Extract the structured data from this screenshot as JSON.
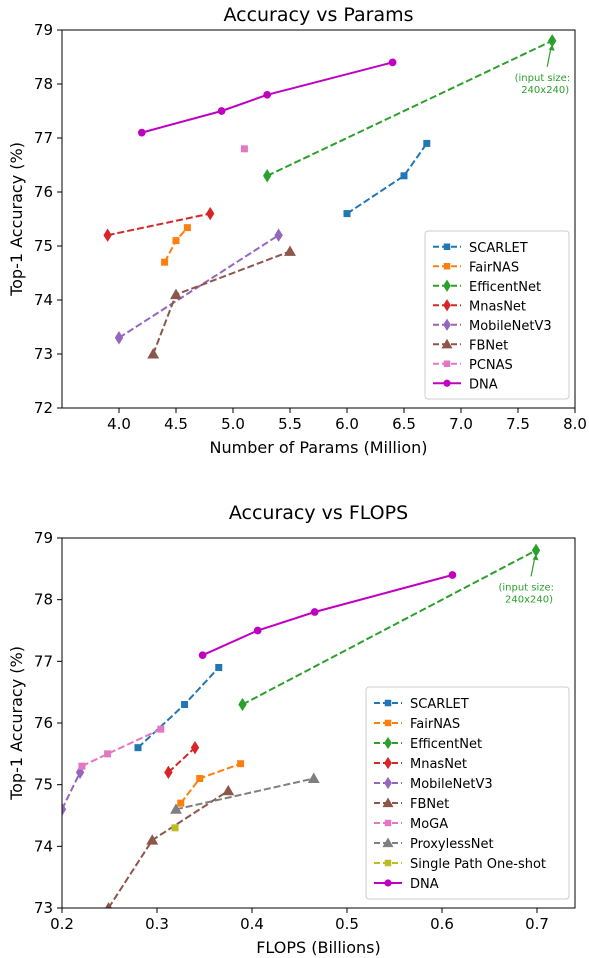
{
  "chart_data": [
    {
      "type": "line",
      "title": "Accuracy vs Params",
      "xlabel": "Number of Params (Million)",
      "ylabel": "Top-1 Accuracy (%)",
      "xlim": [
        3.5,
        8.0
      ],
      "ylim": [
        72,
        79
      ],
      "xticks": [
        "4.0",
        "4.5",
        "5.0",
        "5.5",
        "6.0",
        "6.5",
        "7.0",
        "7.5",
        "8.0"
      ],
      "yticks": [
        "72",
        "73",
        "74",
        "75",
        "76",
        "77",
        "78",
        "79"
      ],
      "legend_position": "lower-right",
      "annotation": {
        "text_line1": "(input size:",
        "text_line2": "240x240)",
        "x": 7.8,
        "y": 78.8,
        "color": "#2ca02c"
      },
      "series": [
        {
          "name": "SCARLET",
          "color": "#1f77b4",
          "marker": "square",
          "dash": true,
          "x": [
            6.0,
            6.5,
            6.7
          ],
          "y": [
            75.6,
            76.3,
            76.9
          ]
        },
        {
          "name": "FairNAS",
          "color": "#ff7f0e",
          "marker": "square",
          "dash": true,
          "x": [
            4.4,
            4.5,
            4.6
          ],
          "y": [
            74.7,
            75.1,
            75.34
          ]
        },
        {
          "name": "EfficentNet",
          "color": "#2ca02c",
          "marker": "diamond",
          "dash": true,
          "x": [
            5.3,
            7.8
          ],
          "y": [
            76.3,
            78.8
          ]
        },
        {
          "name": "MnasNet",
          "color": "#d62728",
          "marker": "diamond",
          "dash": true,
          "x": [
            3.9,
            4.8
          ],
          "y": [
            75.2,
            75.6
          ]
        },
        {
          "name": "MobileNetV3",
          "color": "#9467bd",
          "marker": "diamond",
          "dash": true,
          "x": [
            4.0,
            5.4
          ],
          "y": [
            73.3,
            75.2
          ]
        },
        {
          "name": "FBNet",
          "color": "#8c564b",
          "marker": "triangle",
          "dash": true,
          "x": [
            4.3,
            4.5,
            5.5
          ],
          "y": [
            73.0,
            74.1,
            74.9
          ]
        },
        {
          "name": "PCNAS",
          "color": "#e377c2",
          "marker": "square",
          "dash": true,
          "x": [
            5.1
          ],
          "y": [
            76.8
          ]
        },
        {
          "name": "DNA",
          "color": "#c000c0",
          "marker": "circle",
          "dash": false,
          "x": [
            4.2,
            4.9,
            5.3,
            6.4
          ],
          "y": [
            77.1,
            77.5,
            77.8,
            78.4
          ]
        }
      ]
    },
    {
      "type": "line",
      "title": "Accuracy vs FLOPS",
      "xlabel": "FLOPS (Billions)",
      "ylabel": "Top-1 Accuracy (%)",
      "xlim": [
        0.2,
        0.74
      ],
      "ylim": [
        73,
        79
      ],
      "xticks": [
        "0.2",
        "0.3",
        "0.4",
        "0.5",
        "0.6",
        "0.7"
      ],
      "yticks": [
        "73",
        "74",
        "75",
        "76",
        "77",
        "78",
        "79"
      ],
      "legend_position": "lower-right",
      "annotation": {
        "text_line1": "(input size:",
        "text_line2": "240x240)",
        "x": 0.699,
        "y": 78.8,
        "color": "#2ca02c"
      },
      "series": [
        {
          "name": "SCARLET",
          "color": "#1f77b4",
          "marker": "square",
          "dash": true,
          "x": [
            0.28,
            0.329,
            0.365
          ],
          "y": [
            75.6,
            76.3,
            76.9
          ]
        },
        {
          "name": "FairNAS",
          "color": "#ff7f0e",
          "marker": "square",
          "dash": true,
          "x": [
            0.325,
            0.345,
            0.388
          ],
          "y": [
            74.7,
            75.1,
            75.34
          ]
        },
        {
          "name": "EfficentNet",
          "color": "#2ca02c",
          "marker": "diamond",
          "dash": true,
          "x": [
            0.39,
            0.699
          ],
          "y": [
            76.3,
            78.8
          ]
        },
        {
          "name": "MnasNet",
          "color": "#d62728",
          "marker": "diamond",
          "dash": true,
          "x": [
            0.312,
            0.34
          ],
          "y": [
            75.2,
            75.6
          ]
        },
        {
          "name": "MobileNetV3",
          "color": "#9467bd",
          "marker": "diamond",
          "dash": true,
          "x": [
            0.2,
            0.219
          ],
          "y": [
            74.6,
            75.2
          ]
        },
        {
          "name": "FBNet",
          "color": "#8c564b",
          "marker": "triangle",
          "dash": true,
          "x": [
            0.249,
            0.295,
            0.375
          ],
          "y": [
            73.0,
            74.1,
            74.9
          ]
        },
        {
          "name": "MoGA",
          "color": "#e377c2",
          "marker": "square",
          "dash": true,
          "x": [
            0.221,
            0.248,
            0.304
          ],
          "y": [
            75.3,
            75.5,
            75.9
          ]
        },
        {
          "name": "ProxylessNet",
          "color": "#7f7f7f",
          "marker": "triangle",
          "dash": true,
          "x": [
            0.32,
            0.465
          ],
          "y": [
            74.6,
            75.1
          ]
        },
        {
          "name": "Single Path One-shot",
          "color": "#bcbd22",
          "marker": "square",
          "dash": true,
          "x": [
            0.319
          ],
          "y": [
            74.3
          ]
        },
        {
          "name": "DNA",
          "color": "#c000c0",
          "marker": "circle",
          "dash": false,
          "x": [
            0.348,
            0.406,
            0.466,
            0.611
          ],
          "y": [
            77.1,
            77.5,
            77.8,
            78.4
          ]
        }
      ]
    }
  ]
}
